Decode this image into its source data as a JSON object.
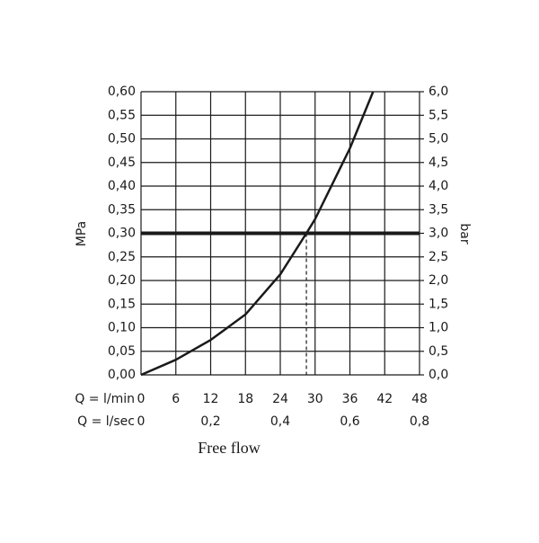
{
  "chart_data": {
    "type": "line",
    "xlabel": "Free flow",
    "ylabel": "MPa",
    "y2label": "bar",
    "x_unit_label": "Q = l/min",
    "x2_unit_label": "Q = l/sec",
    "x": [
      0,
      6,
      12,
      18,
      24,
      28.5,
      30,
      36,
      40
    ],
    "series": [
      {
        "color": "#1a1a1a",
        "values": [
          0,
          0.032,
          0.074,
          0.128,
          0.213,
          0.3,
          0.33,
          0.48,
          0.6
        ]
      }
    ],
    "xlim": [
      0,
      48
    ],
    "xticks": [
      0,
      6,
      12,
      18,
      24,
      30,
      36,
      42,
      48
    ],
    "x2lim": [
      0,
      0.8
    ],
    "x2ticks": [
      0,
      {
        "value": 0.2,
        "label": "0,2"
      },
      {
        "value": 0.4,
        "label": "0,4"
      },
      {
        "value": 0.6,
        "label": "0,6"
      },
      {
        "value": 0.8,
        "label": "0,8"
      }
    ],
    "ylim": [
      0,
      0.6
    ],
    "yticks": [
      {
        "value": 0,
        "label": "0,00"
      },
      {
        "value": 0.05,
        "label": "0,05"
      },
      {
        "value": 0.1,
        "label": "0,10"
      },
      {
        "value": 0.15,
        "label": "0,15"
      },
      {
        "value": 0.2,
        "label": "0,20"
      },
      {
        "value": 0.25,
        "label": "0,25"
      },
      {
        "value": 0.3,
        "label": "0,30"
      },
      {
        "value": 0.35,
        "label": "0,35"
      },
      {
        "value": 0.4,
        "label": "0,40"
      },
      {
        "value": 0.45,
        "label": "0,45"
      },
      {
        "value": 0.5,
        "label": "0,50"
      },
      {
        "value": 0.55,
        "label": "0,55"
      },
      {
        "value": 0.6,
        "label": "0,60"
      }
    ],
    "y2lim": [
      0,
      6
    ],
    "y2ticks": [
      {
        "value": 0,
        "label": "0,0"
      },
      {
        "value": 0.5,
        "label": "0,5"
      },
      {
        "value": 1,
        "label": "1,0"
      },
      {
        "value": 1.5,
        "label": "1,5"
      },
      {
        "value": 2,
        "label": "2,0"
      },
      {
        "value": 2.5,
        "label": "2,5"
      },
      {
        "value": 3,
        "label": "3,0"
      },
      {
        "value": 3.5,
        "label": "3,5"
      },
      {
        "value": 4,
        "label": "4,0"
      },
      {
        "value": 4.5,
        "label": "4,5"
      },
      {
        "value": 5,
        "label": "5,0"
      },
      {
        "value": 5.5,
        "label": "5,5"
      },
      {
        "value": 6,
        "label": "6,0"
      }
    ],
    "threshold": 0.3,
    "marker_x": 28.5,
    "grid": true
  }
}
